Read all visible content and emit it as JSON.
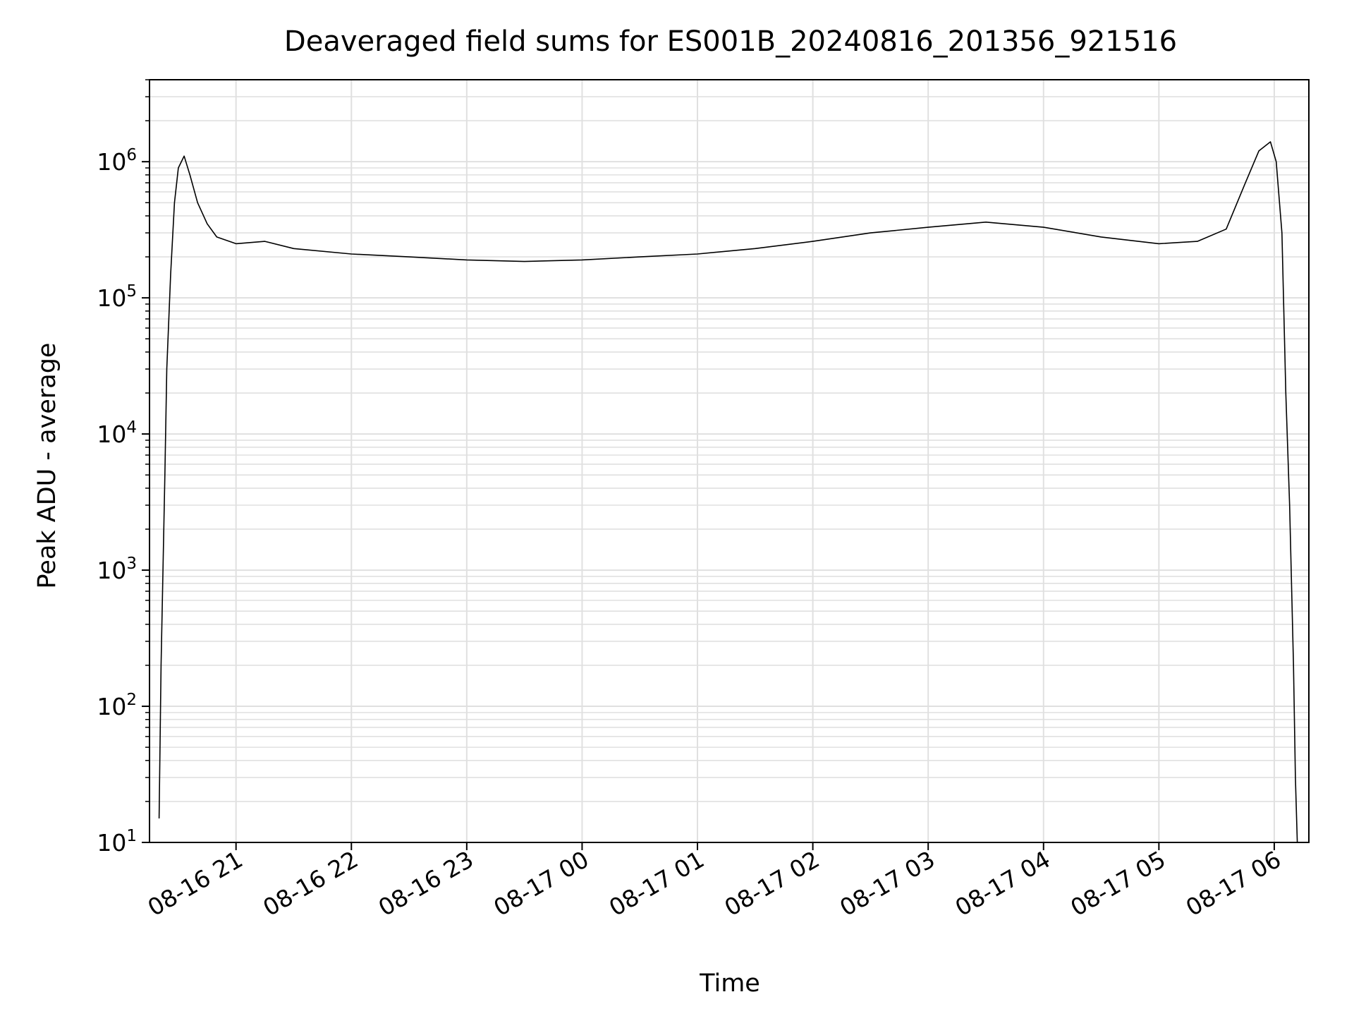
{
  "chart_data": {
    "type": "line",
    "title": "Deaveraged field sums for ES001B_20240816_201356_921516",
    "xlabel": "Time",
    "ylabel": "Peak ADU - average",
    "yscale": "log",
    "grid": true,
    "legend": "none",
    "xlim": [
      "2024-08-16 20:15",
      "2024-08-17 06:18"
    ],
    "ylim": [
      10,
      4000000
    ],
    "x_ticks": [
      {
        "value": "2024-08-16 21:00",
        "label": "08-16 21"
      },
      {
        "value": "2024-08-16 22:00",
        "label": "08-16 22"
      },
      {
        "value": "2024-08-16 23:00",
        "label": "08-16 23"
      },
      {
        "value": "2024-08-17 00:00",
        "label": "08-17 00"
      },
      {
        "value": "2024-08-17 01:00",
        "label": "08-17 01"
      },
      {
        "value": "2024-08-17 02:00",
        "label": "08-17 02"
      },
      {
        "value": "2024-08-17 03:00",
        "label": "08-17 03"
      },
      {
        "value": "2024-08-17 04:00",
        "label": "08-17 04"
      },
      {
        "value": "2024-08-17 05:00",
        "label": "08-17 05"
      },
      {
        "value": "2024-08-17 06:00",
        "label": "08-17 06"
      }
    ],
    "y_ticks": [
      {
        "value": 10,
        "base": "10",
        "exp": "1"
      },
      {
        "value": 100,
        "base": "10",
        "exp": "2"
      },
      {
        "value": 1000,
        "base": "10",
        "exp": "3"
      },
      {
        "value": 10000,
        "base": "10",
        "exp": "4"
      },
      {
        "value": 100000,
        "base": "10",
        "exp": "5"
      },
      {
        "value": 1000000,
        "base": "10",
        "exp": "6"
      }
    ],
    "series": [
      {
        "color": "#000000",
        "x": [
          "2024-08-16 20:20",
          "2024-08-16 20:21",
          "2024-08-16 20:22",
          "2024-08-16 20:23",
          "2024-08-16 20:24",
          "2024-08-16 20:26",
          "2024-08-16 20:28",
          "2024-08-16 20:30",
          "2024-08-16 20:33",
          "2024-08-16 20:36",
          "2024-08-16 20:40",
          "2024-08-16 20:45",
          "2024-08-16 20:50",
          "2024-08-16 21:00",
          "2024-08-16 21:15",
          "2024-08-16 21:30",
          "2024-08-16 22:00",
          "2024-08-16 22:30",
          "2024-08-16 23:00",
          "2024-08-16 23:30",
          "2024-08-17 00:00",
          "2024-08-17 00:30",
          "2024-08-17 01:00",
          "2024-08-17 01:30",
          "2024-08-17 02:00",
          "2024-08-17 02:30",
          "2024-08-17 03:00",
          "2024-08-17 03:30",
          "2024-08-17 04:00",
          "2024-08-17 04:30",
          "2024-08-17 05:00",
          "2024-08-17 05:20",
          "2024-08-17 05:35",
          "2024-08-17 05:45",
          "2024-08-17 05:52",
          "2024-08-17 05:58",
          "2024-08-17 06:01",
          "2024-08-17 06:04",
          "2024-08-17 06:06",
          "2024-08-17 06:08",
          "2024-08-17 06:10",
          "2024-08-17 06:11",
          "2024-08-17 06:12"
        ],
        "y": [
          15,
          200,
          1000,
          5000,
          30000,
          150000,
          500000,
          900000,
          1100000,
          800000,
          500000,
          350000,
          280000,
          250000,
          260000,
          230000,
          210000,
          200000,
          190000,
          185000,
          190000,
          200000,
          210000,
          230000,
          260000,
          300000,
          330000,
          360000,
          330000,
          280000,
          250000,
          260000,
          320000,
          700000,
          1200000,
          1400000,
          1000000,
          300000,
          20000,
          3000,
          200,
          30,
          10
        ]
      }
    ]
  }
}
